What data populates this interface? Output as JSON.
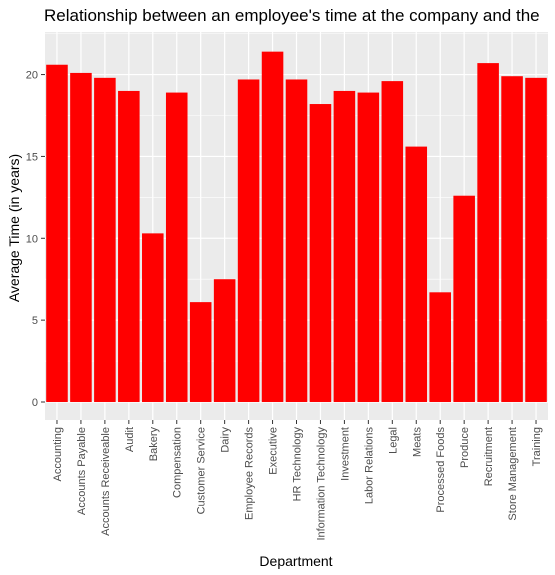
{
  "chart_data": {
    "type": "bar",
    "title": "Relationship between an employee's time at the company and the",
    "xlabel": "Department",
    "ylabel": "Average Time (in years)",
    "ylim": [
      -1.1,
      22.6
    ],
    "yticks": [
      0,
      5,
      10,
      15,
      20
    ],
    "grid": true,
    "categories": [
      "Accounting",
      "Accounts Payable",
      "Accounts Receiveable",
      "Audit",
      "Bakery",
      "Compensation",
      "Customer Service",
      "Dairy",
      "Employee Records",
      "Executive",
      "HR Technology",
      "Information Technology",
      "Investment",
      "Labor Relations",
      "Legal",
      "Meats",
      "Processed Foods",
      "Produce",
      "Recruitment",
      "Store Management",
      "Training"
    ],
    "values": [
      20.6,
      20.1,
      19.8,
      19.0,
      10.3,
      18.9,
      6.1,
      7.5,
      19.7,
      21.4,
      19.7,
      18.2,
      19.0,
      18.9,
      19.6,
      15.6,
      6.7,
      12.6,
      20.7,
      19.9,
      19.8
    ],
    "colors": {
      "bar": "#ff0000",
      "panel": "#ebebeb",
      "grid": "#ffffff"
    }
  }
}
